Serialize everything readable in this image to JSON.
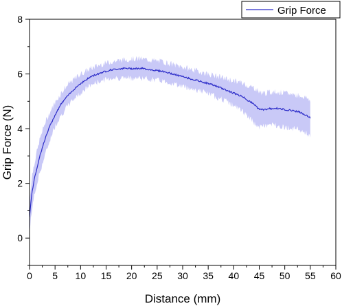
{
  "chart_data": {
    "type": "line",
    "title": "",
    "xlabel": "Distance (mm)",
    "ylabel": "Grip Force (N)",
    "xlim": [
      0,
      60
    ],
    "ylim": [
      -1,
      8
    ],
    "x_ticks": [
      0,
      5,
      10,
      15,
      20,
      25,
      30,
      35,
      40,
      45,
      50,
      55,
      60
    ],
    "y_ticks": [
      0,
      2,
      4,
      6,
      8
    ],
    "grid": false,
    "legend_position": "top-right",
    "series": [
      {
        "name": "Grip Force",
        "color": "#2b2bc8",
        "band_color": "#c9c9f7",
        "x": [
          0,
          0.5,
          1,
          1.5,
          2,
          3,
          4,
          5,
          6,
          7,
          8,
          9,
          10,
          12,
          14,
          16,
          18,
          20,
          22,
          24,
          26,
          28,
          30,
          32,
          34,
          36,
          38,
          40,
          42,
          43,
          44,
          45,
          46,
          48,
          50,
          52,
          53,
          54,
          55
        ],
        "values": [
          0.8,
          1.7,
          2.2,
          2.6,
          3.0,
          3.6,
          4.1,
          4.5,
          4.85,
          5.1,
          5.3,
          5.5,
          5.65,
          5.9,
          6.05,
          6.15,
          6.2,
          6.2,
          6.2,
          6.15,
          6.1,
          6.0,
          5.9,
          5.8,
          5.7,
          5.6,
          5.45,
          5.3,
          5.15,
          5.0,
          4.9,
          4.7,
          4.7,
          4.75,
          4.7,
          4.65,
          4.6,
          4.5,
          4.4
        ],
        "band_lower": [
          0.2,
          1.1,
          1.6,
          2.0,
          2.4,
          3.0,
          3.6,
          4.1,
          4.45,
          4.7,
          4.95,
          5.15,
          5.3,
          5.6,
          5.75,
          5.85,
          5.85,
          5.85,
          5.85,
          5.8,
          5.75,
          5.65,
          5.55,
          5.45,
          5.35,
          5.2,
          5.05,
          4.85,
          4.6,
          4.4,
          4.2,
          4.05,
          4.1,
          4.15,
          4.05,
          4.0,
          3.95,
          3.85,
          3.75
        ],
        "band_upper": [
          1.4,
          2.3,
          2.8,
          3.2,
          3.6,
          4.2,
          4.6,
          4.95,
          5.25,
          5.5,
          5.7,
          5.85,
          6.0,
          6.2,
          6.35,
          6.45,
          6.5,
          6.55,
          6.55,
          6.5,
          6.45,
          6.35,
          6.25,
          6.15,
          6.05,
          5.95,
          5.85,
          5.75,
          5.65,
          5.55,
          5.5,
          5.35,
          5.3,
          5.35,
          5.3,
          5.25,
          5.2,
          5.15,
          5.05
        ]
      }
    ]
  }
}
